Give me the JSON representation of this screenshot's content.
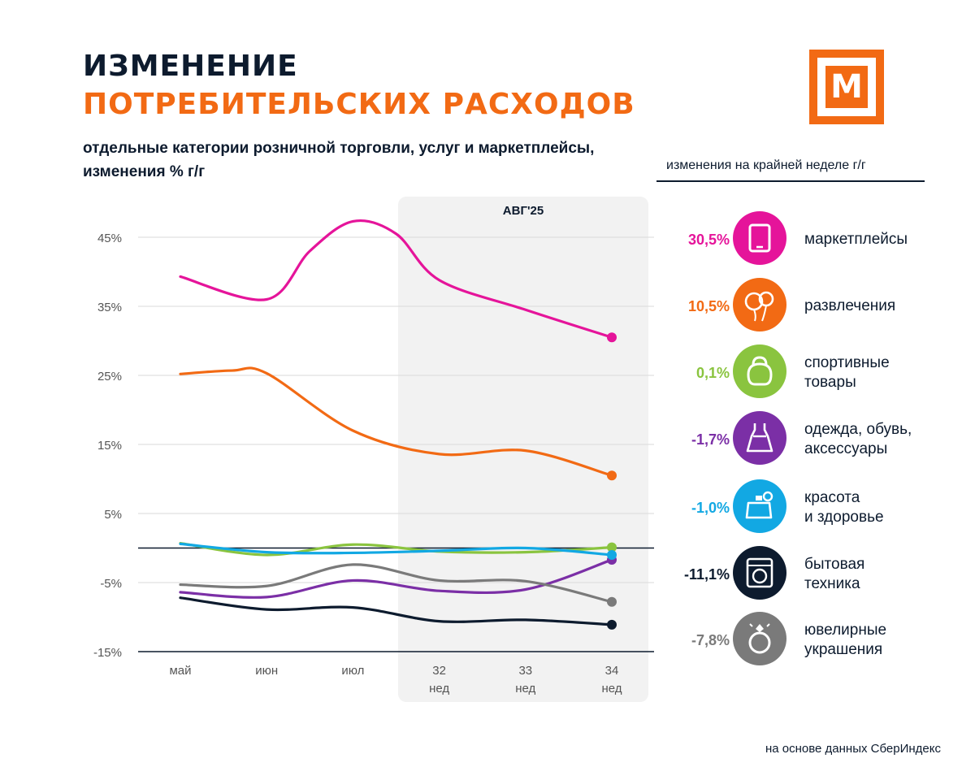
{
  "title": {
    "line1": "ИЗМЕНЕНИЕ",
    "line2": "ПОТРЕБИТЕЛЬСКИХ РАСХОДОВ",
    "subtitle_line1": "отдельные категории розничной торговли, услуг  и маркетплейсы,",
    "subtitle_line2": "изменения % г/г"
  },
  "logo": {
    "letter": "М"
  },
  "legend": {
    "title": "изменения на крайней неделе г/г",
    "items": [
      {
        "pct": "30,5%",
        "label_line1": "маркетплейсы",
        "label_line2": "",
        "color": "#e5149a",
        "icon": "tablet-icon"
      },
      {
        "pct": "10,5%",
        "label_line1": "развлечения",
        "label_line2": "",
        "color": "#f26a14",
        "icon": "balloons-icon"
      },
      {
        "pct": "0,1%",
        "label_line1": "спортивные",
        "label_line2": "товары",
        "color": "#8ac43f",
        "icon": "kettlebell-icon"
      },
      {
        "pct": "-1,7%",
        "label_line1": "одежда, обувь,",
        "label_line2": "аксессуары",
        "color": "#7b2fa6",
        "icon": "dress-icon"
      },
      {
        "pct": "-1,0%",
        "label_line1": "красота",
        "label_line2": "и здоровье",
        "color": "#12a8e3",
        "icon": "perfume-icon"
      },
      {
        "pct": "-11,1%",
        "label_line1": "бытовая",
        "label_line2": "техника",
        "color": "#0d1b2e",
        "icon": "washing-machine-icon"
      },
      {
        "pct": "-7,8%",
        "label_line1": "ювелирные",
        "label_line2": "украшения",
        "color": "#7a7a7a",
        "icon": "ring-icon"
      }
    ]
  },
  "footer": {
    "source": "на основе данных СберИндекс"
  },
  "chart_data": {
    "type": "line",
    "x": [
      "май",
      "июн",
      "июл",
      "32",
      "33",
      "34"
    ],
    "x_sublabels": [
      "",
      "",
      "",
      "нед",
      "нед",
      "нед"
    ],
    "y_ticks": [
      "45%",
      "35%",
      "25%",
      "15%",
      "5%",
      "-5%",
      "-15%"
    ],
    "y_tick_values": [
      45,
      35,
      25,
      15,
      5,
      -5,
      -15
    ],
    "ylim": [
      -15,
      50
    ],
    "highlight_label": "АВГ'25",
    "highlight_from_index": 3,
    "series": [
      {
        "name": "маркетплейсы",
        "color": "#e5149a",
        "x": [
          0,
          1,
          2,
          3,
          4,
          5
        ],
        "values": [
          39.3,
          36.0,
          47.3,
          38.8,
          34.5,
          30.5
        ],
        "curve_x": [
          0,
          1,
          1.5,
          2,
          2.5,
          3,
          4,
          5
        ],
        "curve_values": [
          39.3,
          36.0,
          43.0,
          47.3,
          45.5,
          38.8,
          34.5,
          30.5
        ]
      },
      {
        "name": "развлечения",
        "color": "#f26a14",
        "x": [
          0,
          1,
          2,
          3,
          4,
          5
        ],
        "values": [
          25.2,
          25.3,
          17.0,
          13.6,
          14.1,
          10.5
        ],
        "curve_x": [
          0,
          0.6,
          1,
          2,
          3,
          4,
          5
        ],
        "curve_values": [
          25.2,
          25.7,
          25.3,
          17.0,
          13.6,
          14.1,
          10.5
        ]
      },
      {
        "name": "спортивные товары",
        "color": "#8ac43f",
        "x": [
          0,
          1,
          2,
          3,
          4,
          5
        ],
        "values": [
          0.7,
          -1.0,
          0.5,
          -0.5,
          -0.6,
          0.1
        ]
      },
      {
        "name": "одежда, обувь, аксессуары",
        "color": "#7b2fa6",
        "x": [
          0,
          1,
          2,
          3,
          4,
          5
        ],
        "values": [
          -6.4,
          -7.1,
          -4.7,
          -6.2,
          -6.0,
          -1.7
        ]
      },
      {
        "name": "красота и здоровье",
        "color": "#12a8e3",
        "x": [
          0,
          1,
          2,
          3,
          4,
          5
        ],
        "values": [
          0.6,
          -0.6,
          -0.7,
          -0.4,
          0.0,
          -1.0
        ]
      },
      {
        "name": "бытовая техника",
        "color": "#0d1b2e",
        "x": [
          0,
          1,
          2,
          3,
          4,
          5
        ],
        "values": [
          -7.2,
          -8.9,
          -8.6,
          -10.6,
          -10.4,
          -11.1
        ]
      },
      {
        "name": "ювелирные украшения",
        "color": "#7a7a7a",
        "x": [
          0,
          1,
          2,
          3,
          4,
          5
        ],
        "values": [
          -5.3,
          -5.5,
          -2.4,
          -4.7,
          -4.8,
          -7.8
        ]
      }
    ]
  }
}
